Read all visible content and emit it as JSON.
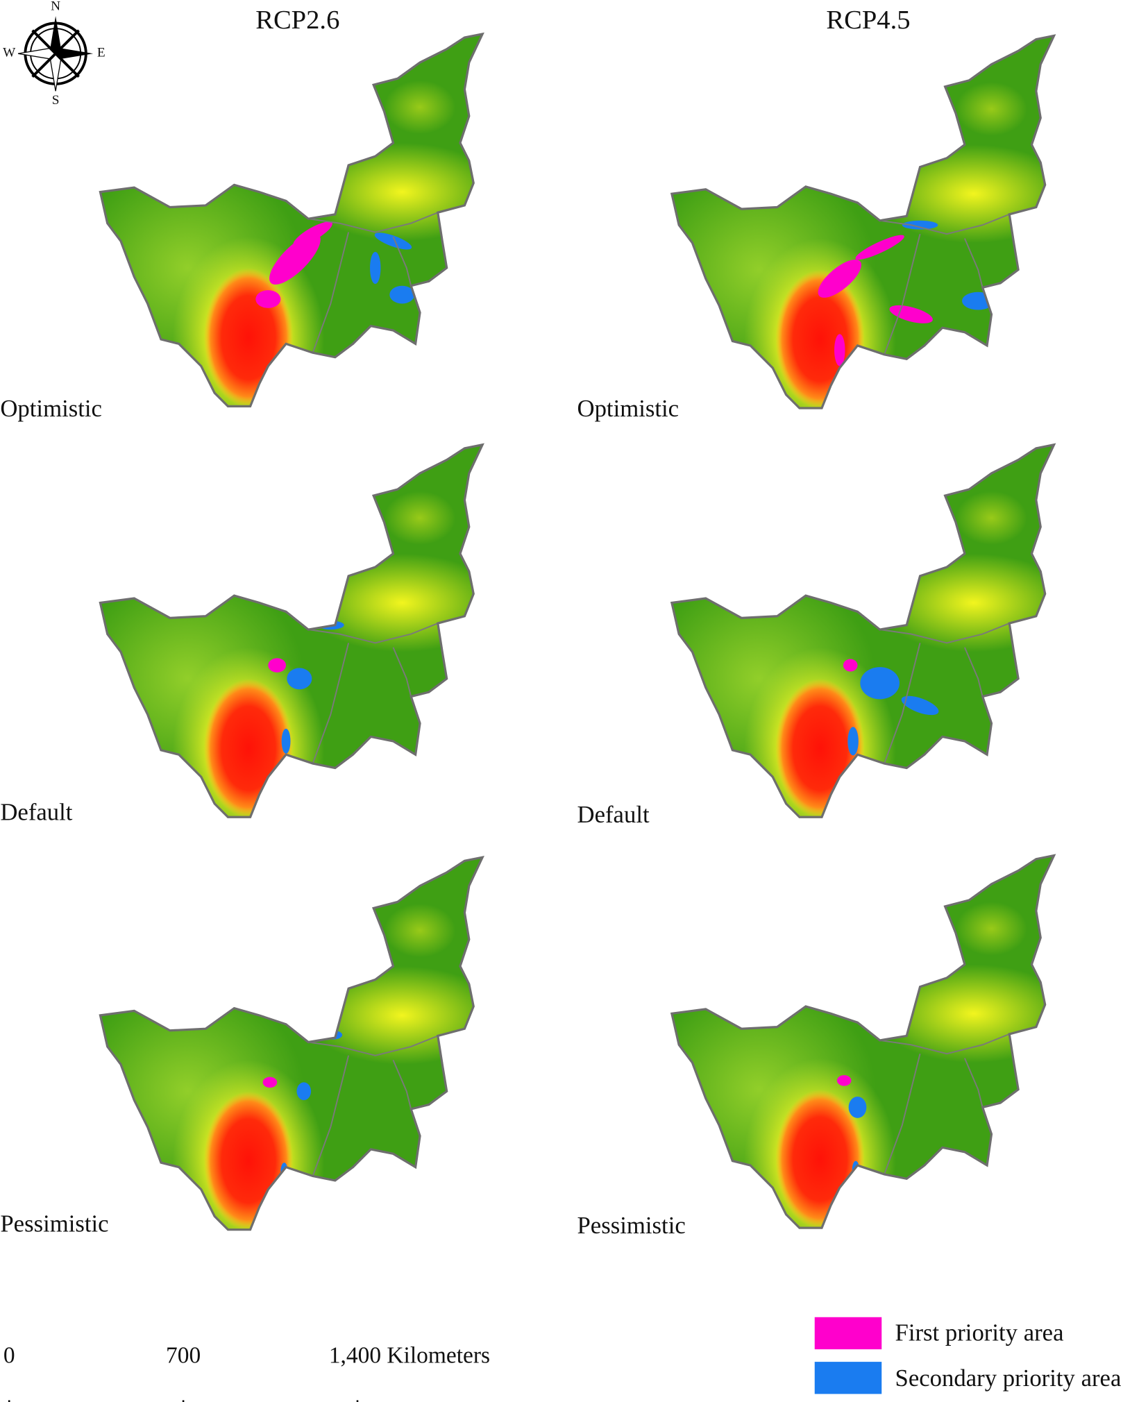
{
  "columns": [
    "RCP2.6",
    "RCP4.5"
  ],
  "panel_labels": [
    [
      "Optimistic",
      "Optimistic"
    ],
    [
      "Default",
      "Default"
    ],
    [
      "Pessimistic",
      "Pessimistic"
    ]
  ],
  "compass": {
    "north": "N",
    "east": "E",
    "south": "S",
    "west": "W"
  },
  "scale_bar": {
    "labels": [
      "0",
      "700",
      "1,400 Kilometers"
    ]
  },
  "legend": [
    {
      "label": "First priority area",
      "color": "#ff00cc"
    },
    {
      "label": "Secondary priority area",
      "color": "#1a7cf0"
    }
  ]
}
